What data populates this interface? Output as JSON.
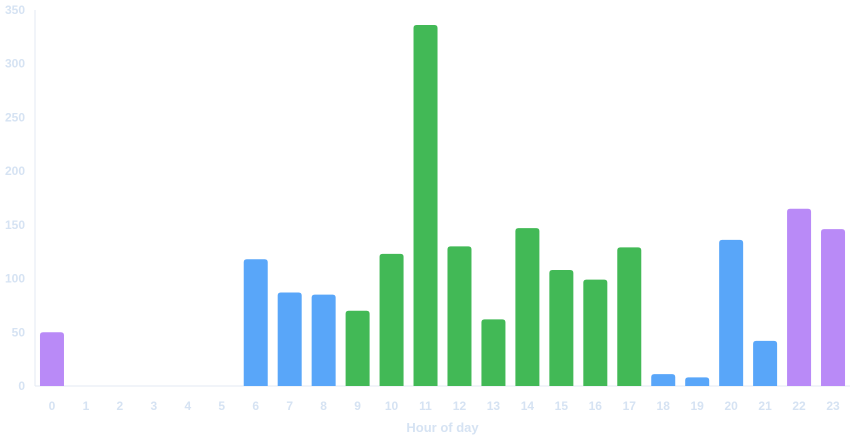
{
  "chart_data": {
    "type": "bar",
    "title": "",
    "xlabel": "Hour of day",
    "ylabel": "",
    "ylim": [
      0,
      350
    ],
    "yticks": [
      0,
      50,
      100,
      150,
      200,
      250,
      300,
      350
    ],
    "grid": false,
    "categories": [
      "0",
      "1",
      "2",
      "3",
      "4",
      "5",
      "6",
      "7",
      "8",
      "9",
      "10",
      "11",
      "12",
      "13",
      "14",
      "15",
      "16",
      "17",
      "18",
      "19",
      "20",
      "21",
      "22",
      "23"
    ],
    "values": [
      50,
      0,
      0,
      0,
      0,
      0,
      118,
      87,
      85,
      70,
      123,
      336,
      130,
      62,
      147,
      108,
      99,
      129,
      11,
      8,
      136,
      42,
      165,
      146
    ],
    "bar_colors": [
      "#b98af7",
      "#b98af7",
      "#b98af7",
      "#b98af7",
      "#b98af7",
      "#b98af7",
      "#59a6f9",
      "#59a6f9",
      "#59a6f9",
      "#42b956",
      "#42b956",
      "#42b956",
      "#42b956",
      "#42b956",
      "#42b956",
      "#42b956",
      "#42b956",
      "#42b956",
      "#59a6f9",
      "#59a6f9",
      "#59a6f9",
      "#59a6f9",
      "#b98af7",
      "#b98af7"
    ],
    "axis_color": "#e3eaf3"
  }
}
